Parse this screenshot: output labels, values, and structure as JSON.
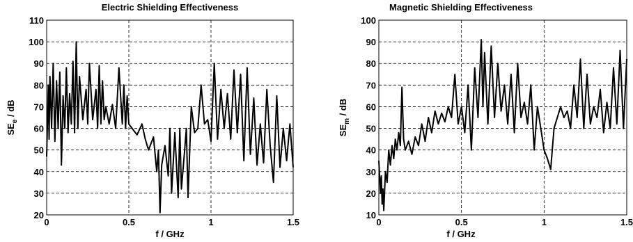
{
  "chart_data": [
    {
      "type": "line",
      "title": "Electric Shielding Effectiveness",
      "xlabel": "f / GHz",
      "ylabel_main": "SE",
      "ylabel_sub": "e",
      "ylabel_unit": " / dB",
      "xlim": [
        0,
        1.5
      ],
      "ylim": [
        20,
        110
      ],
      "xticks": [
        0,
        0.5,
        1,
        1.5
      ],
      "xtick_labels": [
        "0",
        "0.5",
        "1",
        "1.5"
      ],
      "yticks": [
        20,
        30,
        40,
        50,
        60,
        70,
        80,
        90,
        100,
        110
      ],
      "ytick_labels": [
        "20",
        "30",
        "40",
        "50",
        "60",
        "70",
        "80",
        "90",
        "100",
        "110"
      ],
      "grid": true,
      "series": [
        {
          "x": [
            0,
            0.01,
            0.015,
            0.02,
            0.03,
            0.04,
            0.05,
            0.06,
            0.07,
            0.08,
            0.09,
            0.1,
            0.11,
            0.12,
            0.13,
            0.14,
            0.15,
            0.16,
            0.17,
            0.18,
            0.19,
            0.2,
            0.22,
            0.24,
            0.25,
            0.26,
            0.28,
            0.3,
            0.31,
            0.32,
            0.33,
            0.34,
            0.35,
            0.36,
            0.38,
            0.4,
            0.42,
            0.44,
            0.46,
            0.47,
            0.48,
            0.49,
            0.5,
            0.52,
            0.55,
            0.58,
            0.6,
            0.62,
            0.65,
            0.67,
            0.68,
            0.69,
            0.7,
            0.72,
            0.74,
            0.75,
            0.76,
            0.78,
            0.8,
            0.81,
            0.82,
            0.84,
            0.85,
            0.86,
            0.88,
            0.9,
            0.92,
            0.94,
            0.96,
            0.98,
            1.0,
            1.02,
            1.04,
            1.06,
            1.08,
            1.1,
            1.12,
            1.14,
            1.16,
            1.18,
            1.2,
            1.22,
            1.24,
            1.26,
            1.28,
            1.3,
            1.32,
            1.34,
            1.36,
            1.38,
            1.4,
            1.42,
            1.44,
            1.46,
            1.48,
            1.5
          ],
          "y": [
            47,
            80,
            55,
            84,
            60,
            90,
            54,
            82,
            60,
            86,
            43,
            75,
            60,
            88,
            58,
            76,
            62,
            91,
            58,
            100,
            60,
            84,
            64,
            78,
            62,
            90,
            64,
            78,
            60,
            89,
            62,
            82,
            64,
            70,
            62,
            71,
            60,
            88,
            62,
            80,
            60,
            75,
            62,
            60,
            57,
            62,
            55,
            50,
            56,
            40,
            50,
            21,
            43,
            52,
            38,
            60,
            30,
            58,
            28,
            60,
            32,
            50,
            60,
            28,
            70,
            58,
            60,
            80,
            62,
            64,
            54,
            90,
            55,
            78,
            60,
            76,
            55,
            87,
            58,
            85,
            45,
            88,
            48,
            74,
            43,
            62,
            44,
            78,
            52,
            35,
            75,
            42,
            60,
            45,
            62,
            42
          ]
        }
      ]
    },
    {
      "type": "line",
      "title": "Magnetic Shielding Effectiveness",
      "xlabel": "f / GHz",
      "ylabel_main": "SE",
      "ylabel_sub": "m",
      "ylabel_unit": " / dB",
      "xlim": [
        0,
        1.5
      ],
      "ylim": [
        10,
        100
      ],
      "xticks": [
        0,
        0.5,
        1,
        1.5
      ],
      "xtick_labels": [
        "0",
        "0.5",
        "1",
        "1.5"
      ],
      "yticks": [
        10,
        20,
        30,
        40,
        50,
        60,
        70,
        80,
        90,
        100
      ],
      "ytick_labels": [
        "10",
        "20",
        "30",
        "40",
        "50",
        "60",
        "70",
        "80",
        "90",
        "100"
      ],
      "grid": true,
      "series": [
        {
          "x": [
            0,
            0.01,
            0.015,
            0.02,
            0.025,
            0.03,
            0.04,
            0.05,
            0.06,
            0.07,
            0.08,
            0.09,
            0.1,
            0.11,
            0.12,
            0.13,
            0.14,
            0.15,
            0.16,
            0.18,
            0.2,
            0.22,
            0.24,
            0.26,
            0.28,
            0.3,
            0.32,
            0.34,
            0.36,
            0.38,
            0.4,
            0.42,
            0.44,
            0.46,
            0.48,
            0.5,
            0.52,
            0.54,
            0.56,
            0.58,
            0.6,
            0.62,
            0.63,
            0.64,
            0.66,
            0.68,
            0.7,
            0.72,
            0.74,
            0.76,
            0.78,
            0.8,
            0.82,
            0.84,
            0.86,
            0.88,
            0.9,
            0.92,
            0.94,
            0.96,
            0.98,
            1.0,
            1.02,
            1.04,
            1.06,
            1.08,
            1.1,
            1.12,
            1.14,
            1.16,
            1.18,
            1.2,
            1.22,
            1.24,
            1.26,
            1.28,
            1.3,
            1.32,
            1.34,
            1.36,
            1.38,
            1.4,
            1.42,
            1.44,
            1.46,
            1.48,
            1.5
          ],
          "y": [
            35,
            20,
            28,
            15,
            22,
            12,
            30,
            25,
            40,
            33,
            42,
            36,
            45,
            40,
            48,
            42,
            69,
            45,
            40,
            44,
            38,
            46,
            42,
            52,
            44,
            55,
            48,
            58,
            52,
            57,
            53,
            60,
            55,
            75,
            52,
            60,
            48,
            70,
            40,
            78,
            55,
            91,
            60,
            85,
            52,
            88,
            55,
            80,
            58,
            70,
            52,
            75,
            48,
            80,
            55,
            62,
            52,
            70,
            40,
            60,
            50,
            40,
            36,
            31,
            50,
            55,
            60,
            55,
            58,
            50,
            70,
            55,
            82,
            50,
            75,
            52,
            60,
            55,
            68,
            48,
            62,
            50,
            78,
            52,
            86,
            50,
            82
          ]
        }
      ]
    }
  ]
}
